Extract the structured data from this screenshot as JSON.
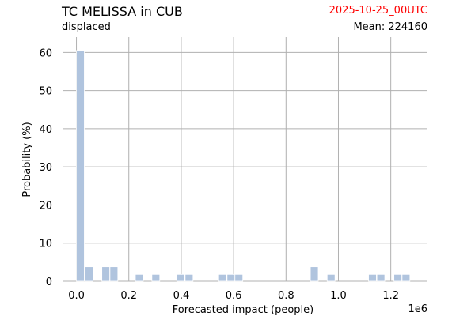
{
  "header": {
    "title": "TC MELISSA in CUB",
    "subtitle": "displaced",
    "date": "2025-10-25_00UTC",
    "mean": "Mean: 224160"
  },
  "chart_data": {
    "type": "bar",
    "xlabel": "Forecasted impact (people)",
    "ylabel": "Probability (%)",
    "x_multiplier_label": "1e6",
    "xlim": [
      -0.05,
      1.34
    ],
    "ylim": [
      0,
      64
    ],
    "grid": true,
    "xticks": [
      0.0,
      0.2,
      0.4,
      0.6,
      0.8,
      1.0,
      1.2
    ],
    "xtick_labels": [
      "0.0",
      "0.2",
      "0.4",
      "0.6",
      "0.8",
      "1.0",
      "1.2"
    ],
    "yticks": [
      0,
      10,
      20,
      30,
      40,
      50,
      60
    ],
    "ytick_labels": [
      "0",
      "10",
      "20",
      "30",
      "40",
      "50",
      "60"
    ],
    "bar_width": 0.03,
    "bar_color": "#b0c4de",
    "bars": [
      {
        "x": 0.015,
        "value": 60.5
      },
      {
        "x": 0.048,
        "value": 3.8
      },
      {
        "x": 0.112,
        "value": 3.8
      },
      {
        "x": 0.143,
        "value": 3.8
      },
      {
        "x": 0.24,
        "value": 1.8
      },
      {
        "x": 0.303,
        "value": 1.8
      },
      {
        "x": 0.398,
        "value": 1.8
      },
      {
        "x": 0.43,
        "value": 1.8
      },
      {
        "x": 0.558,
        "value": 1.8
      },
      {
        "x": 0.59,
        "value": 1.8
      },
      {
        "x": 0.62,
        "value": 1.8
      },
      {
        "x": 0.908,
        "value": 3.8
      },
      {
        "x": 0.972,
        "value": 1.8
      },
      {
        "x": 1.13,
        "value": 1.8
      },
      {
        "x": 1.162,
        "value": 1.8
      },
      {
        "x": 1.227,
        "value": 1.8
      },
      {
        "x": 1.258,
        "value": 1.8
      }
    ]
  }
}
